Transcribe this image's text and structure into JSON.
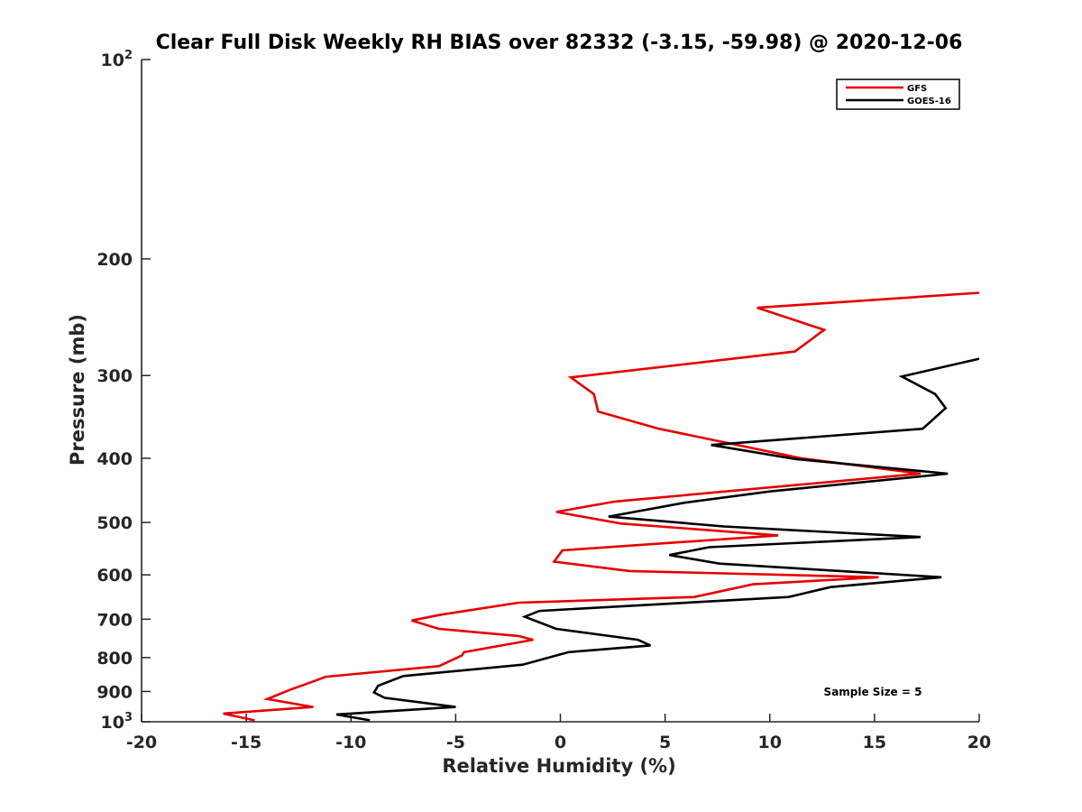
{
  "chart_data": {
    "type": "line",
    "title": "Clear Full Disk Weekly RH BIAS over 82332 (-3.15, -59.98) @ 2020-12-06",
    "xlabel": "Relative Humidity (%)",
    "ylabel": "Pressure (mb)",
    "xlim": [
      -20,
      20
    ],
    "ylim": [
      100,
      1000
    ],
    "y_scale": "log",
    "y_reversed": true,
    "grid": false,
    "legend_position": "top-right",
    "x_ticks": [
      "-20",
      "-15",
      "-10",
      "-5",
      "0",
      "5",
      "10",
      "15",
      "20"
    ],
    "y_ticks": [
      {
        "value": 100,
        "label": "10",
        "sup": "2"
      },
      {
        "value": 200,
        "label": "200",
        "sup": ""
      },
      {
        "value": 300,
        "label": "300",
        "sup": ""
      },
      {
        "value": 400,
        "label": "400",
        "sup": ""
      },
      {
        "value": 500,
        "label": "500",
        "sup": ""
      },
      {
        "value": 600,
        "label": "600",
        "sup": ""
      },
      {
        "value": 700,
        "label": "700",
        "sup": ""
      },
      {
        "value": 800,
        "label": "800",
        "sup": ""
      },
      {
        "value": 900,
        "label": "900",
        "sup": ""
      },
      {
        "value": 1000,
        "label": "10",
        "sup": "3"
      }
    ],
    "series": [
      {
        "name": "GFS",
        "color": "#e60000",
        "points": [
          [
            20.0,
            225
          ],
          [
            9.4,
            237
          ],
          [
            12.6,
            256
          ],
          [
            11.2,
            276
          ],
          [
            0.5,
            302
          ],
          [
            1.6,
            320
          ],
          [
            1.8,
            340
          ],
          [
            4.7,
            361
          ],
          [
            11.5,
            400
          ],
          [
            17.2,
            422
          ],
          [
            2.6,
            465
          ],
          [
            -0.2,
            482
          ],
          [
            2.9,
            502
          ],
          [
            10.4,
            523
          ],
          [
            0.1,
            551
          ],
          [
            -0.3,
            573
          ],
          [
            3.3,
            592
          ],
          [
            15.2,
            605
          ],
          [
            9.2,
            620
          ],
          [
            6.4,
            648
          ],
          [
            -2.0,
            661
          ],
          [
            -5.7,
            689
          ],
          [
            -7.1,
            703
          ],
          [
            -5.8,
            724
          ],
          [
            -2.0,
            742
          ],
          [
            -1.3,
            752
          ],
          [
            -4.6,
            785
          ],
          [
            -4.7,
            794
          ],
          [
            -5.8,
            824
          ],
          [
            -11.2,
            855
          ],
          [
            -12.1,
            876
          ],
          [
            -12.8,
            892
          ],
          [
            -14.0,
            924
          ],
          [
            -11.8,
            950
          ],
          [
            -16.1,
            972
          ],
          [
            -14.6,
            995
          ]
        ]
      },
      {
        "name": "GOES-16",
        "color": "#000000",
        "points": [
          [
            20.0,
            283
          ],
          [
            16.3,
            301
          ],
          [
            17.9,
            320
          ],
          [
            18.4,
            336
          ],
          [
            17.3,
            361
          ],
          [
            7.2,
            382
          ],
          [
            11.2,
            401
          ],
          [
            18.5,
            422
          ],
          [
            10.0,
            449
          ],
          [
            5.9,
            467
          ],
          [
            2.3,
            490
          ],
          [
            7.8,
            507
          ],
          [
            17.2,
            526
          ],
          [
            7.1,
            545
          ],
          [
            5.2,
            560
          ],
          [
            7.6,
            577
          ],
          [
            18.2,
            605
          ],
          [
            12.9,
            626
          ],
          [
            10.9,
            648
          ],
          [
            -1.0,
            680
          ],
          [
            -1.7,
            694
          ],
          [
            -0.2,
            724
          ],
          [
            3.7,
            752
          ],
          [
            4.3,
            767
          ],
          [
            0.4,
            785
          ],
          [
            -1.8,
            820
          ],
          [
            -7.5,
            853
          ],
          [
            -8.7,
            882
          ],
          [
            -8.9,
            903
          ],
          [
            -8.4,
            920
          ],
          [
            -5.0,
            950
          ],
          [
            -10.7,
            975
          ],
          [
            -9.1,
            995
          ]
        ]
      }
    ],
    "annotations": [
      {
        "text": "Sample Size = 5"
      }
    ]
  },
  "colors": {
    "axis": "#262626",
    "background": "#ffffff",
    "gfs": "#e60000",
    "goes": "#000000"
  }
}
